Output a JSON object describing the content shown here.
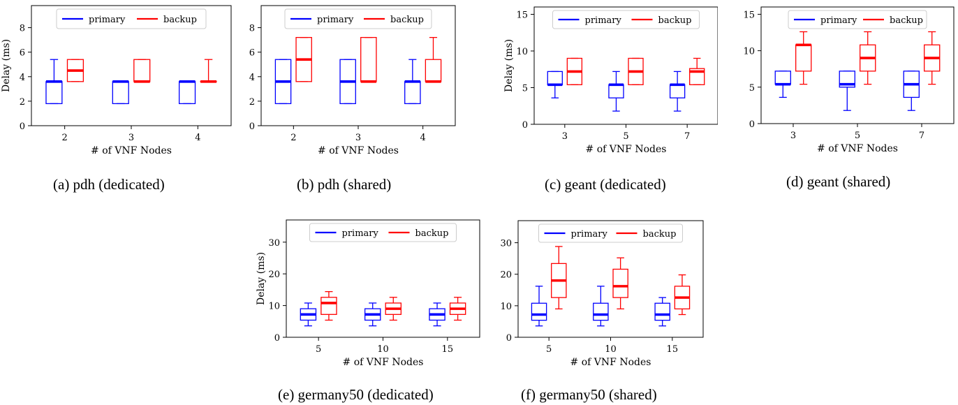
{
  "colors": {
    "primary": "#0000ff",
    "backup": "#ff0000"
  },
  "chart_data": [
    {
      "id": "a",
      "type": "box",
      "caption": "(a) pdh (dedicated)",
      "xlabel": "# of VNF Nodes",
      "ylabel": "Delay (ms)",
      "categories": [
        "2",
        "3",
        "4"
      ],
      "ylim": [
        0,
        9.8
      ],
      "yticks": [
        0,
        2,
        4,
        6,
        8
      ],
      "legend": {
        "entries": [
          "primary",
          "backup"
        ],
        "placement": "top"
      },
      "series": [
        {
          "name": "primary",
          "boxes": [
            {
              "whislo": 1.8,
              "q1": 1.8,
              "med": 3.6,
              "q3": 3.6,
              "whishi": 5.4
            },
            {
              "whislo": 1.8,
              "q1": 1.8,
              "med": 3.6,
              "q3": 3.6,
              "whishi": 3.6
            },
            {
              "whislo": 1.8,
              "q1": 1.8,
              "med": 3.6,
              "q3": 3.6,
              "whishi": 3.6
            }
          ]
        },
        {
          "name": "backup",
          "boxes": [
            {
              "whislo": 3.6,
              "q1": 3.6,
              "med": 4.5,
              "q3": 5.4,
              "whishi": 5.4
            },
            {
              "whislo": 3.6,
              "q1": 3.6,
              "med": 3.6,
              "q3": 5.4,
              "whishi": 5.4
            },
            {
              "whislo": 3.6,
              "q1": 3.6,
              "med": 3.6,
              "q3": 3.6,
              "whishi": 5.4
            }
          ]
        }
      ]
    },
    {
      "id": "b",
      "type": "box",
      "caption": "(b) pdh (shared)",
      "xlabel": "# of VNF Nodes",
      "ylabel": "",
      "categories": [
        "2",
        "3",
        "4"
      ],
      "ylim": [
        0,
        9.8
      ],
      "yticks": [
        0,
        2,
        4,
        6,
        8
      ],
      "legend": {
        "entries": [
          "primary",
          "backup"
        ],
        "placement": "top"
      },
      "series": [
        {
          "name": "primary",
          "boxes": [
            {
              "whislo": 1.8,
              "q1": 1.8,
              "med": 3.6,
              "q3": 5.4,
              "whishi": 5.4
            },
            {
              "whislo": 1.8,
              "q1": 1.8,
              "med": 3.6,
              "q3": 5.4,
              "whishi": 5.4
            },
            {
              "whislo": 1.8,
              "q1": 1.8,
              "med": 3.6,
              "q3": 3.6,
              "whishi": 5.4
            }
          ]
        },
        {
          "name": "backup",
          "boxes": [
            {
              "whislo": 3.6,
              "q1": 3.6,
              "med": 5.4,
              "q3": 7.2,
              "whishi": 7.2
            },
            {
              "whislo": 3.6,
              "q1": 3.6,
              "med": 3.6,
              "q3": 7.2,
              "whishi": 7.2
            },
            {
              "whislo": 3.6,
              "q1": 3.6,
              "med": 3.6,
              "q3": 5.4,
              "whishi": 7.2
            }
          ]
        }
      ]
    },
    {
      "id": "c",
      "type": "box",
      "caption": "(c) geant (dedicated)",
      "xlabel": "# of VNF Nodes",
      "ylabel": "Delay (ms)",
      "categories": [
        "3",
        "5",
        "7"
      ],
      "ylim": [
        0,
        16
      ],
      "yticks": [
        0,
        5,
        10,
        15
      ],
      "legend": {
        "entries": [
          "primary",
          "backup"
        ],
        "placement": "top"
      },
      "series": [
        {
          "name": "primary",
          "boxes": [
            {
              "whislo": 3.6,
              "q1": 5.4,
              "med": 5.4,
              "q3": 7.2,
              "whishi": 7.2
            },
            {
              "whislo": 1.8,
              "q1": 3.6,
              "med": 5.4,
              "q3": 5.4,
              "whishi": 7.2
            },
            {
              "whislo": 1.8,
              "q1": 3.6,
              "med": 5.4,
              "q3": 5.4,
              "whishi": 7.2
            }
          ]
        },
        {
          "name": "backup",
          "boxes": [
            {
              "whislo": 5.4,
              "q1": 5.4,
              "med": 7.2,
              "q3": 9.0,
              "whishi": 9.0
            },
            {
              "whislo": 5.4,
              "q1": 5.4,
              "med": 7.2,
              "q3": 9.0,
              "whishi": 9.0
            },
            {
              "whislo": 5.4,
              "q1": 5.4,
              "med": 7.2,
              "q3": 7.6,
              "whishi": 9.0
            }
          ]
        }
      ]
    },
    {
      "id": "d",
      "type": "box",
      "caption": "(d) geant (shared)",
      "xlabel": "# of VNF Nodes",
      "ylabel": "",
      "categories": [
        "3",
        "5",
        "7"
      ],
      "ylim": [
        0,
        16
      ],
      "yticks": [
        0,
        5,
        10,
        15
      ],
      "legend": {
        "entries": [
          "primary",
          "backup"
        ],
        "placement": "top"
      },
      "series": [
        {
          "name": "primary",
          "boxes": [
            {
              "whislo": 3.6,
              "q1": 5.4,
              "med": 5.4,
              "q3": 7.2,
              "whishi": 7.2
            },
            {
              "whislo": 1.8,
              "q1": 5.0,
              "med": 5.4,
              "q3": 7.2,
              "whishi": 7.2
            },
            {
              "whislo": 1.8,
              "q1": 3.6,
              "med": 5.4,
              "q3": 7.2,
              "whishi": 7.2
            }
          ]
        },
        {
          "name": "backup",
          "boxes": [
            {
              "whislo": 5.4,
              "q1": 7.2,
              "med": 10.8,
              "q3": 10.8,
              "whishi": 12.6
            },
            {
              "whislo": 5.4,
              "q1": 7.2,
              "med": 9.0,
              "q3": 10.8,
              "whishi": 12.6
            },
            {
              "whislo": 5.4,
              "q1": 7.2,
              "med": 9.0,
              "q3": 10.8,
              "whishi": 12.6
            }
          ]
        }
      ]
    },
    {
      "id": "e",
      "type": "box",
      "caption": "(e) germany50 (dedicated)",
      "xlabel": "# of VNF Nodes",
      "ylabel": "Delay (ms)",
      "categories": [
        "5",
        "10",
        "15"
      ],
      "ylim": [
        0,
        37
      ],
      "yticks": [
        0,
        10,
        20,
        30
      ],
      "legend": {
        "entries": [
          "primary",
          "backup"
        ],
        "placement": "top"
      },
      "series": [
        {
          "name": "primary",
          "boxes": [
            {
              "whislo": 3.6,
              "q1": 5.4,
              "med": 7.2,
              "q3": 9.0,
              "whishi": 10.8
            },
            {
              "whislo": 3.6,
              "q1": 5.4,
              "med": 7.2,
              "q3": 9.0,
              "whishi": 10.8
            },
            {
              "whislo": 3.6,
              "q1": 5.4,
              "med": 7.2,
              "q3": 9.0,
              "whishi": 10.8
            }
          ]
        },
        {
          "name": "backup",
          "boxes": [
            {
              "whislo": 5.4,
              "q1": 7.2,
              "med": 10.8,
              "q3": 12.6,
              "whishi": 14.4
            },
            {
              "whislo": 5.4,
              "q1": 7.2,
              "med": 9.0,
              "q3": 10.8,
              "whishi": 12.6
            },
            {
              "whislo": 5.4,
              "q1": 7.2,
              "med": 9.0,
              "q3": 10.8,
              "whishi": 12.6
            }
          ]
        }
      ]
    },
    {
      "id": "f",
      "type": "box",
      "caption": "(f) germany50 (shared)",
      "xlabel": "# of VNF Nodes",
      "ylabel": "",
      "categories": [
        "5",
        "10",
        "15"
      ],
      "ylim": [
        0,
        37
      ],
      "yticks": [
        0,
        10,
        20,
        30
      ],
      "legend": {
        "entries": [
          "primary",
          "backup"
        ],
        "placement": "top"
      },
      "series": [
        {
          "name": "primary",
          "boxes": [
            {
              "whislo": 3.6,
              "q1": 5.4,
              "med": 7.2,
              "q3": 10.8,
              "whishi": 16.2
            },
            {
              "whislo": 3.6,
              "q1": 5.4,
              "med": 7.2,
              "q3": 10.8,
              "whishi": 16.2
            },
            {
              "whislo": 3.6,
              "q1": 5.4,
              "med": 7.2,
              "q3": 10.8,
              "whishi": 12.6
            }
          ]
        },
        {
          "name": "backup",
          "boxes": [
            {
              "whislo": 9.0,
              "q1": 12.6,
              "med": 18.0,
              "q3": 23.4,
              "whishi": 28.8
            },
            {
              "whislo": 9.0,
              "q1": 12.6,
              "med": 16.2,
              "q3": 21.6,
              "whishi": 25.2
            },
            {
              "whislo": 7.2,
              "q1": 9.0,
              "med": 12.6,
              "q3": 16.2,
              "whishi": 19.8
            }
          ]
        }
      ]
    }
  ]
}
